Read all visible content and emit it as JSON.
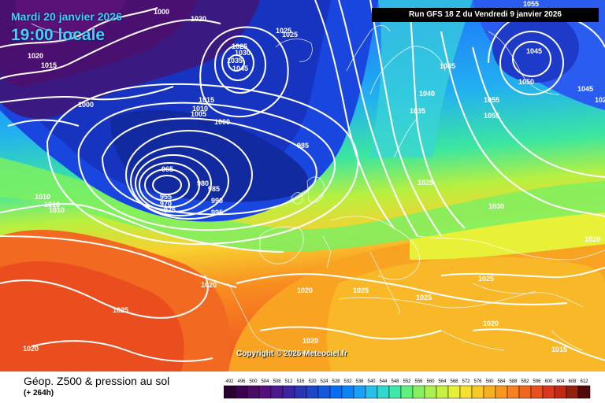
{
  "header": {
    "date": "Mardi 20 janvier 2026",
    "time": "19:00 locale",
    "run": "Run GFS 18 Z du Vendredi 9 janvier 2026"
  },
  "map": {
    "copyright": "Copyright © 2026 Meteociel.fr",
    "isobar_labels": [
      "1000",
      "1020",
      "1025",
      "1020",
      "1015",
      "1000",
      "1025",
      "1025",
      "1030",
      "1035",
      "1045",
      "1015",
      "1010",
      "1005",
      "1000",
      "985",
      "965",
      "955",
      "970",
      "975",
      "980",
      "985",
      "990",
      "995",
      "1010",
      "1010",
      "1010",
      "1020",
      "1025",
      "1020",
      "1020",
      "1025",
      "1020",
      "1025",
      "1020",
      "1045",
      "1040",
      "1035",
      "1025",
      "1030",
      "1045",
      "1050",
      "1055",
      "1055",
      "1045",
      "1055",
      "1025",
      "1020",
      "1020",
      "1015"
    ]
  },
  "footer": {
    "title": "Géop. Z500 & pression au sol",
    "subtitle": "(+ 264h)",
    "scale_values": [
      "492",
      "496",
      "500",
      "504",
      "508",
      "512",
      "516",
      "520",
      "524",
      "528",
      "532",
      "536",
      "540",
      "544",
      "548",
      "552",
      "556",
      "560",
      "564",
      "568",
      "572",
      "576",
      "580",
      "584",
      "588",
      "592",
      "596",
      "600",
      "604",
      "608",
      "612"
    ],
    "scale_colors": [
      "#2a0030",
      "#3b0050",
      "#4a0a66",
      "#55107a",
      "#4a1a8c",
      "#3a24a0",
      "#2a34b4",
      "#1e46c8",
      "#1458dc",
      "#0c6cf0",
      "#0a84f8",
      "#1aa0f4",
      "#28c0e8",
      "#30d8d0",
      "#40e8a8",
      "#60f080",
      "#88f060",
      "#aaf050",
      "#c8f040",
      "#e6f038",
      "#f8e030",
      "#f8c828",
      "#f8b020",
      "#f89820",
      "#f88020",
      "#f06820",
      "#e85020",
      "#d83820",
      "#c02818",
      "#902010",
      "#500808"
    ]
  }
}
